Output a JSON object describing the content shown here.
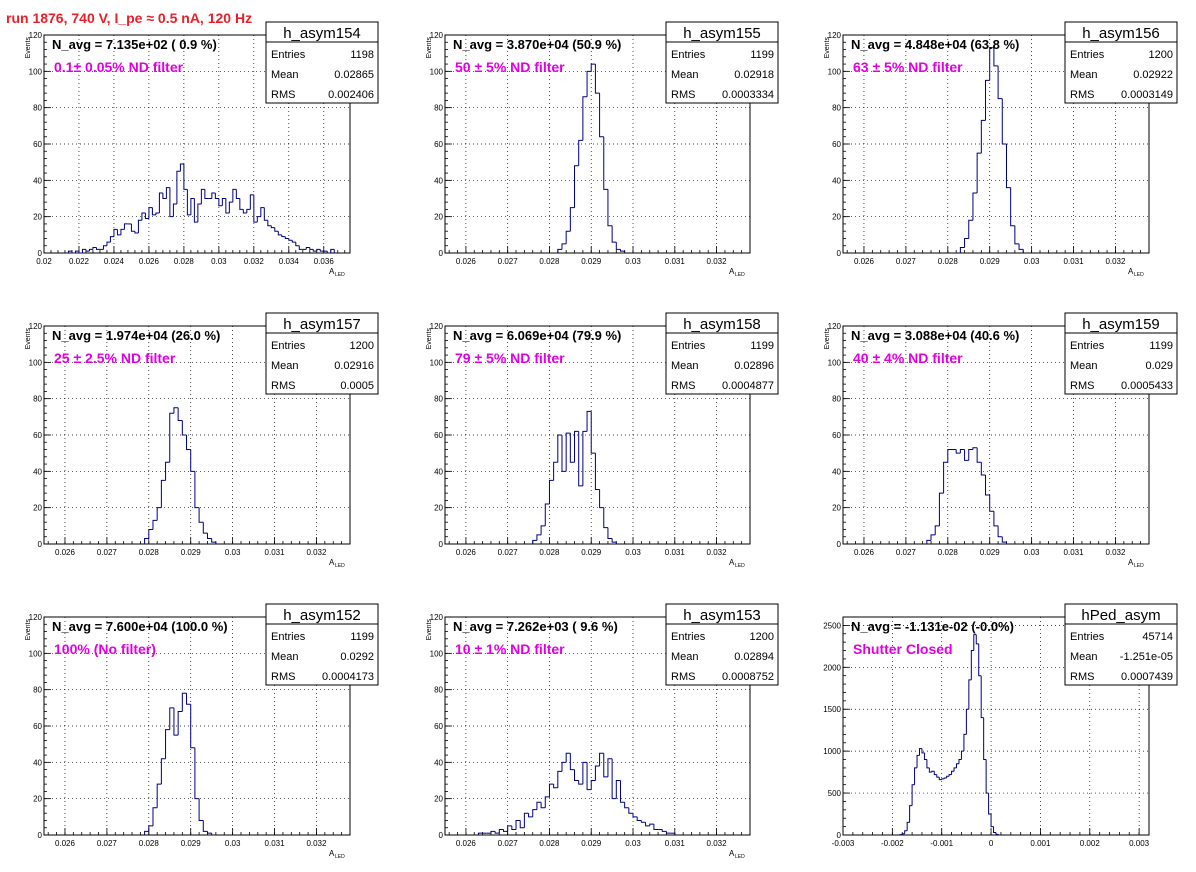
{
  "page_title": "run 1876,   740 V, I_pe ≈ 0.5 nA, 120 Hz",
  "colors": {
    "hist": "#000080",
    "title": "#e8202a",
    "label": "#e000e0",
    "grid": "#000000"
  },
  "chart_data": [
    {
      "type": "histogram",
      "name": "h_asym154",
      "navg_text": "N_avg = 7.135e+02 ( 0.9 %)",
      "filter_text": "0.1± 0.05% ND filter",
      "stats": {
        "entries_label": "Entries",
        "entries": "1198",
        "mean_label": "Mean",
        "mean": "0.02865",
        "rms_label": "RMS",
        "rms": "0.002406"
      },
      "ylabel": "Events",
      "xlabel": "A",
      "xlabel_sub": "LED",
      "xlim": [
        0.02,
        0.0375
      ],
      "ylim": [
        0,
        120
      ],
      "xticks": [
        0.02,
        0.022,
        0.024,
        0.026,
        0.028,
        0.03,
        0.032,
        0.034,
        0.036
      ],
      "xtick_labels": [
        "0.02",
        "0.022",
        "0.024",
        "0.026",
        "0.028",
        "0.03",
        "0.032",
        "0.034",
        "0.036"
      ],
      "yticks": [
        0,
        20,
        40,
        60,
        80,
        100,
        120
      ],
      "ytick_labels": [
        "0",
        "20",
        "40",
        "60",
        "80",
        "100",
        "120"
      ],
      "bin_start": 0.0214,
      "bin_width": 0.0002,
      "counts": [
        1,
        0,
        1,
        0,
        2,
        1,
        2,
        3,
        2,
        2,
        4,
        6,
        9,
        13,
        10,
        13,
        16,
        16,
        12,
        11,
        18,
        22,
        19,
        25,
        21,
        22,
        33,
        30,
        36,
        20,
        27,
        45,
        49,
        35,
        21,
        30,
        17,
        27,
        35,
        30,
        30,
        33,
        30,
        26,
        30,
        22,
        28,
        35,
        30,
        24,
        22,
        24,
        32,
        17,
        20,
        25,
        18,
        15,
        14,
        12,
        10,
        9,
        8,
        7,
        6,
        4,
        2,
        2,
        3,
        2,
        1,
        2,
        1,
        1,
        0,
        2
      ]
    },
    {
      "type": "histogram",
      "name": "h_asym155",
      "navg_text": "N_avg = 3.870e+04 (50.9 %)",
      "filter_text": "50 ± 5% ND filter",
      "stats": {
        "entries_label": "Entries",
        "entries": "1199",
        "mean_label": "Mean",
        "mean": "0.02918",
        "rms_label": "RMS",
        "rms": "0.0003334"
      },
      "ylabel": "Events",
      "xlabel": "A",
      "xlabel_sub": "LED",
      "xlim": [
        0.0255,
        0.0328
      ],
      "ylim": [
        0,
        120
      ],
      "xticks": [
        0.026,
        0.027,
        0.028,
        0.029,
        0.03,
        0.031,
        0.032
      ],
      "xtick_labels": [
        "0.026",
        "0.027",
        "0.028",
        "0.029",
        "0.03",
        "0.031",
        "0.032"
      ],
      "yticks": [
        0,
        20,
        40,
        60,
        80,
        100,
        120
      ],
      "ytick_labels": [
        "0",
        "20",
        "40",
        "60",
        "80",
        "100",
        "120"
      ],
      "bin_start": 0.0282,
      "bin_width": 0.0001,
      "counts": [
        2,
        5,
        12,
        25,
        48,
        62,
        86,
        100,
        104,
        88,
        64,
        35,
        15,
        6,
        2,
        1
      ]
    },
    {
      "type": "histogram",
      "name": "h_asym156",
      "navg_text": "N_avg = 4.848e+04 (63.8 %)",
      "filter_text": "63 ± 5% ND filter",
      "stats": {
        "entries_label": "Entries",
        "entries": "1200",
        "mean_label": "Mean",
        "mean": "0.02922",
        "rms_label": "RMS",
        "rms": "0.0003149"
      },
      "ylabel": "Events",
      "xlabel": "A",
      "xlabel_sub": "LED",
      "xlim": [
        0.0255,
        0.0328
      ],
      "ylim": [
        0,
        120
      ],
      "xticks": [
        0.026,
        0.027,
        0.028,
        0.029,
        0.03,
        0.031,
        0.032
      ],
      "xtick_labels": [
        "0.026",
        "0.027",
        "0.028",
        "0.029",
        "0.03",
        "0.031",
        "0.032"
      ],
      "yticks": [
        0,
        20,
        40,
        60,
        80,
        100,
        120
      ],
      "ytick_labels": [
        "0",
        "20",
        "40",
        "60",
        "80",
        "100",
        "120"
      ],
      "bin_start": 0.0283,
      "bin_width": 0.0001,
      "counts": [
        3,
        8,
        18,
        33,
        55,
        73,
        95,
        113,
        103,
        85,
        60,
        36,
        15,
        5,
        2
      ]
    },
    {
      "type": "histogram",
      "name": "h_asym157",
      "navg_text": "N_avg = 1.974e+04 (26.0 %)",
      "filter_text": "25 ± 2.5% ND filter",
      "stats": {
        "entries_label": "Entries",
        "entries": "1200",
        "mean_label": "Mean",
        "mean": "0.02916",
        "rms_label": "RMS",
        "rms": "0.0005"
      },
      "ylabel": "Events",
      "xlabel": "A",
      "xlabel_sub": "LED",
      "xlim": [
        0.0255,
        0.0328
      ],
      "ylim": [
        0,
        120
      ],
      "xticks": [
        0.026,
        0.027,
        0.028,
        0.029,
        0.03,
        0.031,
        0.032
      ],
      "xtick_labels": [
        "0.026",
        "0.027",
        "0.028",
        "0.029",
        "0.03",
        "0.031",
        "0.032"
      ],
      "yticks": [
        0,
        20,
        40,
        60,
        80,
        100,
        120
      ],
      "ytick_labels": [
        "0",
        "20",
        "40",
        "60",
        "80",
        "100",
        "120"
      ],
      "bin_start": 0.0279,
      "bin_width": 0.0001,
      "counts": [
        3,
        8,
        13,
        20,
        35,
        45,
        72,
        75,
        68,
        60,
        52,
        40,
        20,
        12,
        6,
        3,
        1
      ]
    },
    {
      "type": "histogram",
      "name": "h_asym158",
      "navg_text": "N_avg = 6.069e+04 (79.9 %)",
      "filter_text": "79 ± 5% ND filter",
      "stats": {
        "entries_label": "Entries",
        "entries": "1199",
        "mean_label": "Mean",
        "mean": "0.02896",
        "rms_label": "RMS",
        "rms": "0.0004877"
      },
      "ylabel": "Events",
      "xlabel": "A",
      "xlabel_sub": "LED",
      "xlim": [
        0.0255,
        0.0328
      ],
      "ylim": [
        0,
        120
      ],
      "xticks": [
        0.026,
        0.027,
        0.028,
        0.029,
        0.03,
        0.031,
        0.032
      ],
      "xtick_labels": [
        "0.026",
        "0.027",
        "0.028",
        "0.029",
        "0.03",
        "0.031",
        "0.032"
      ],
      "yticks": [
        0,
        20,
        40,
        60,
        80,
        100,
        120
      ],
      "ytick_labels": [
        "0",
        "20",
        "40",
        "60",
        "80",
        "100",
        "120"
      ],
      "bin_start": 0.0276,
      "bin_width": 0.0001,
      "counts": [
        2,
        5,
        10,
        22,
        35,
        45,
        60,
        40,
        61,
        45,
        62,
        32,
        62,
        73,
        50,
        30,
        20,
        9,
        3,
        1
      ]
    },
    {
      "type": "histogram",
      "name": "h_asym159",
      "navg_text": "N_avg = 3.088e+04 (40.6 %)",
      "filter_text": "40 ± 4% ND filter",
      "stats": {
        "entries_label": "Entries",
        "entries": "1199",
        "mean_label": "Mean",
        "mean": "0.029",
        "rms_label": "RMS",
        "rms": "0.0005433"
      },
      "ylabel": "Events",
      "xlabel": "A",
      "xlabel_sub": "LED",
      "xlim": [
        0.0255,
        0.0328
      ],
      "ylim": [
        0,
        120
      ],
      "xticks": [
        0.026,
        0.027,
        0.028,
        0.029,
        0.03,
        0.031,
        0.032
      ],
      "xtick_labels": [
        "0.026",
        "0.027",
        "0.028",
        "0.029",
        "0.03",
        "0.031",
        "0.032"
      ],
      "yticks": [
        0,
        20,
        40,
        60,
        80,
        100,
        120
      ],
      "ytick_labels": [
        "0",
        "20",
        "40",
        "60",
        "80",
        "100",
        "120"
      ],
      "bin_start": 0.0275,
      "bin_width": 0.0001,
      "counts": [
        2,
        5,
        10,
        28,
        45,
        52,
        52,
        50,
        52,
        46,
        52,
        53,
        45,
        38,
        27,
        18,
        10,
        4,
        1
      ]
    },
    {
      "type": "histogram",
      "name": "h_asym152",
      "navg_text": "N_avg = 7.600e+04 (100.0 %)",
      "filter_text": "100% (No filter)",
      "stats": {
        "entries_label": "Entries",
        "entries": "1199",
        "mean_label": "Mean",
        "mean": "0.0292",
        "rms_label": "RMS",
        "rms": "0.0004173"
      },
      "ylabel": "Events",
      "xlabel": "A",
      "xlabel_sub": "LED",
      "xlim": [
        0.0255,
        0.0328
      ],
      "ylim": [
        0,
        120
      ],
      "xticks": [
        0.026,
        0.027,
        0.028,
        0.029,
        0.03,
        0.031,
        0.032
      ],
      "xtick_labels": [
        "0.026",
        "0.027",
        "0.028",
        "0.029",
        "0.03",
        "0.031",
        "0.032"
      ],
      "yticks": [
        0,
        20,
        40,
        60,
        80,
        100,
        120
      ],
      "ytick_labels": [
        "0",
        "20",
        "40",
        "60",
        "80",
        "100",
        "120"
      ],
      "bin_start": 0.0279,
      "bin_width": 0.0001,
      "counts": [
        2,
        5,
        15,
        28,
        42,
        58,
        70,
        55,
        68,
        78,
        72,
        48,
        20,
        8,
        2,
        1
      ]
    },
    {
      "type": "histogram",
      "name": "h_asym153",
      "navg_text": "N_avg = 7.262e+03 ( 9.6 %)",
      "filter_text": "10 ± 1% ND filter",
      "stats": {
        "entries_label": "Entries",
        "entries": "1200",
        "mean_label": "Mean",
        "mean": "0.02894",
        "rms_label": "RMS",
        "rms": "0.0008752"
      },
      "ylabel": "Events",
      "xlabel": "A",
      "xlabel_sub": "LED",
      "xlim": [
        0.0255,
        0.0328
      ],
      "ylim": [
        0,
        120
      ],
      "xticks": [
        0.026,
        0.027,
        0.028,
        0.029,
        0.03,
        0.031,
        0.032
      ],
      "xtick_labels": [
        "0.026",
        "0.027",
        "0.028",
        "0.029",
        "0.03",
        "0.031",
        "0.032"
      ],
      "yticks": [
        0,
        20,
        40,
        60,
        80,
        100,
        120
      ],
      "ytick_labels": [
        "0",
        "20",
        "40",
        "60",
        "80",
        "100",
        "120"
      ],
      "bin_start": 0.0263,
      "bin_width": 0.0001,
      "counts": [
        1,
        1,
        1,
        2,
        1,
        3,
        2,
        5,
        3,
        8,
        4,
        12,
        10,
        14,
        18,
        15,
        21,
        28,
        26,
        35,
        40,
        45,
        36,
        30,
        28,
        40,
        25,
        30,
        38,
        45,
        32,
        42,
        20,
        30,
        18,
        15,
        12,
        10,
        8,
        7,
        5,
        6,
        3,
        3,
        2,
        1,
        1
      ]
    },
    {
      "type": "histogram",
      "name": "hPed_asym",
      "navg_text": "N_avg = -1.131e-02 (-0.0%)",
      "filter_text": "Shutter Closed",
      "stats": {
        "entries_label": "Entries",
        "entries": "45714",
        "mean_label": "Mean",
        "mean": "-1.251e-05",
        "rms_label": "RMS",
        "rms": "0.0007439"
      },
      "ylabel": "",
      "xlabel": "",
      "xlabel_sub": "",
      "xlim": [
        -0.003,
        0.0032
      ],
      "ylim": [
        0,
        2600
      ],
      "xticks": [
        -0.003,
        -0.002,
        -0.001,
        0,
        0.001,
        0.002,
        0.003
      ],
      "xtick_labels": [
        "-0.003",
        "-0.002",
        "-0.001",
        "0",
        "0.001",
        "0.002",
        "0.003"
      ],
      "yticks": [
        0,
        500,
        1000,
        1500,
        2000,
        2500
      ],
      "ytick_labels": [
        "0",
        "500",
        "1000",
        "1500",
        "2000",
        "2500"
      ],
      "bin_start": -0.00185,
      "bin_width": 5e-05,
      "counts": [
        5,
        15,
        50,
        150,
        350,
        600,
        800,
        950,
        1030,
        980,
        900,
        800,
        750,
        760,
        720,
        690,
        660,
        670,
        680,
        700,
        720,
        760,
        800,
        850,
        900,
        1000,
        1200,
        1500,
        1850,
        2200,
        2390,
        2280,
        1900,
        1400,
        900,
        500,
        250,
        100,
        30,
        8
      ]
    }
  ]
}
